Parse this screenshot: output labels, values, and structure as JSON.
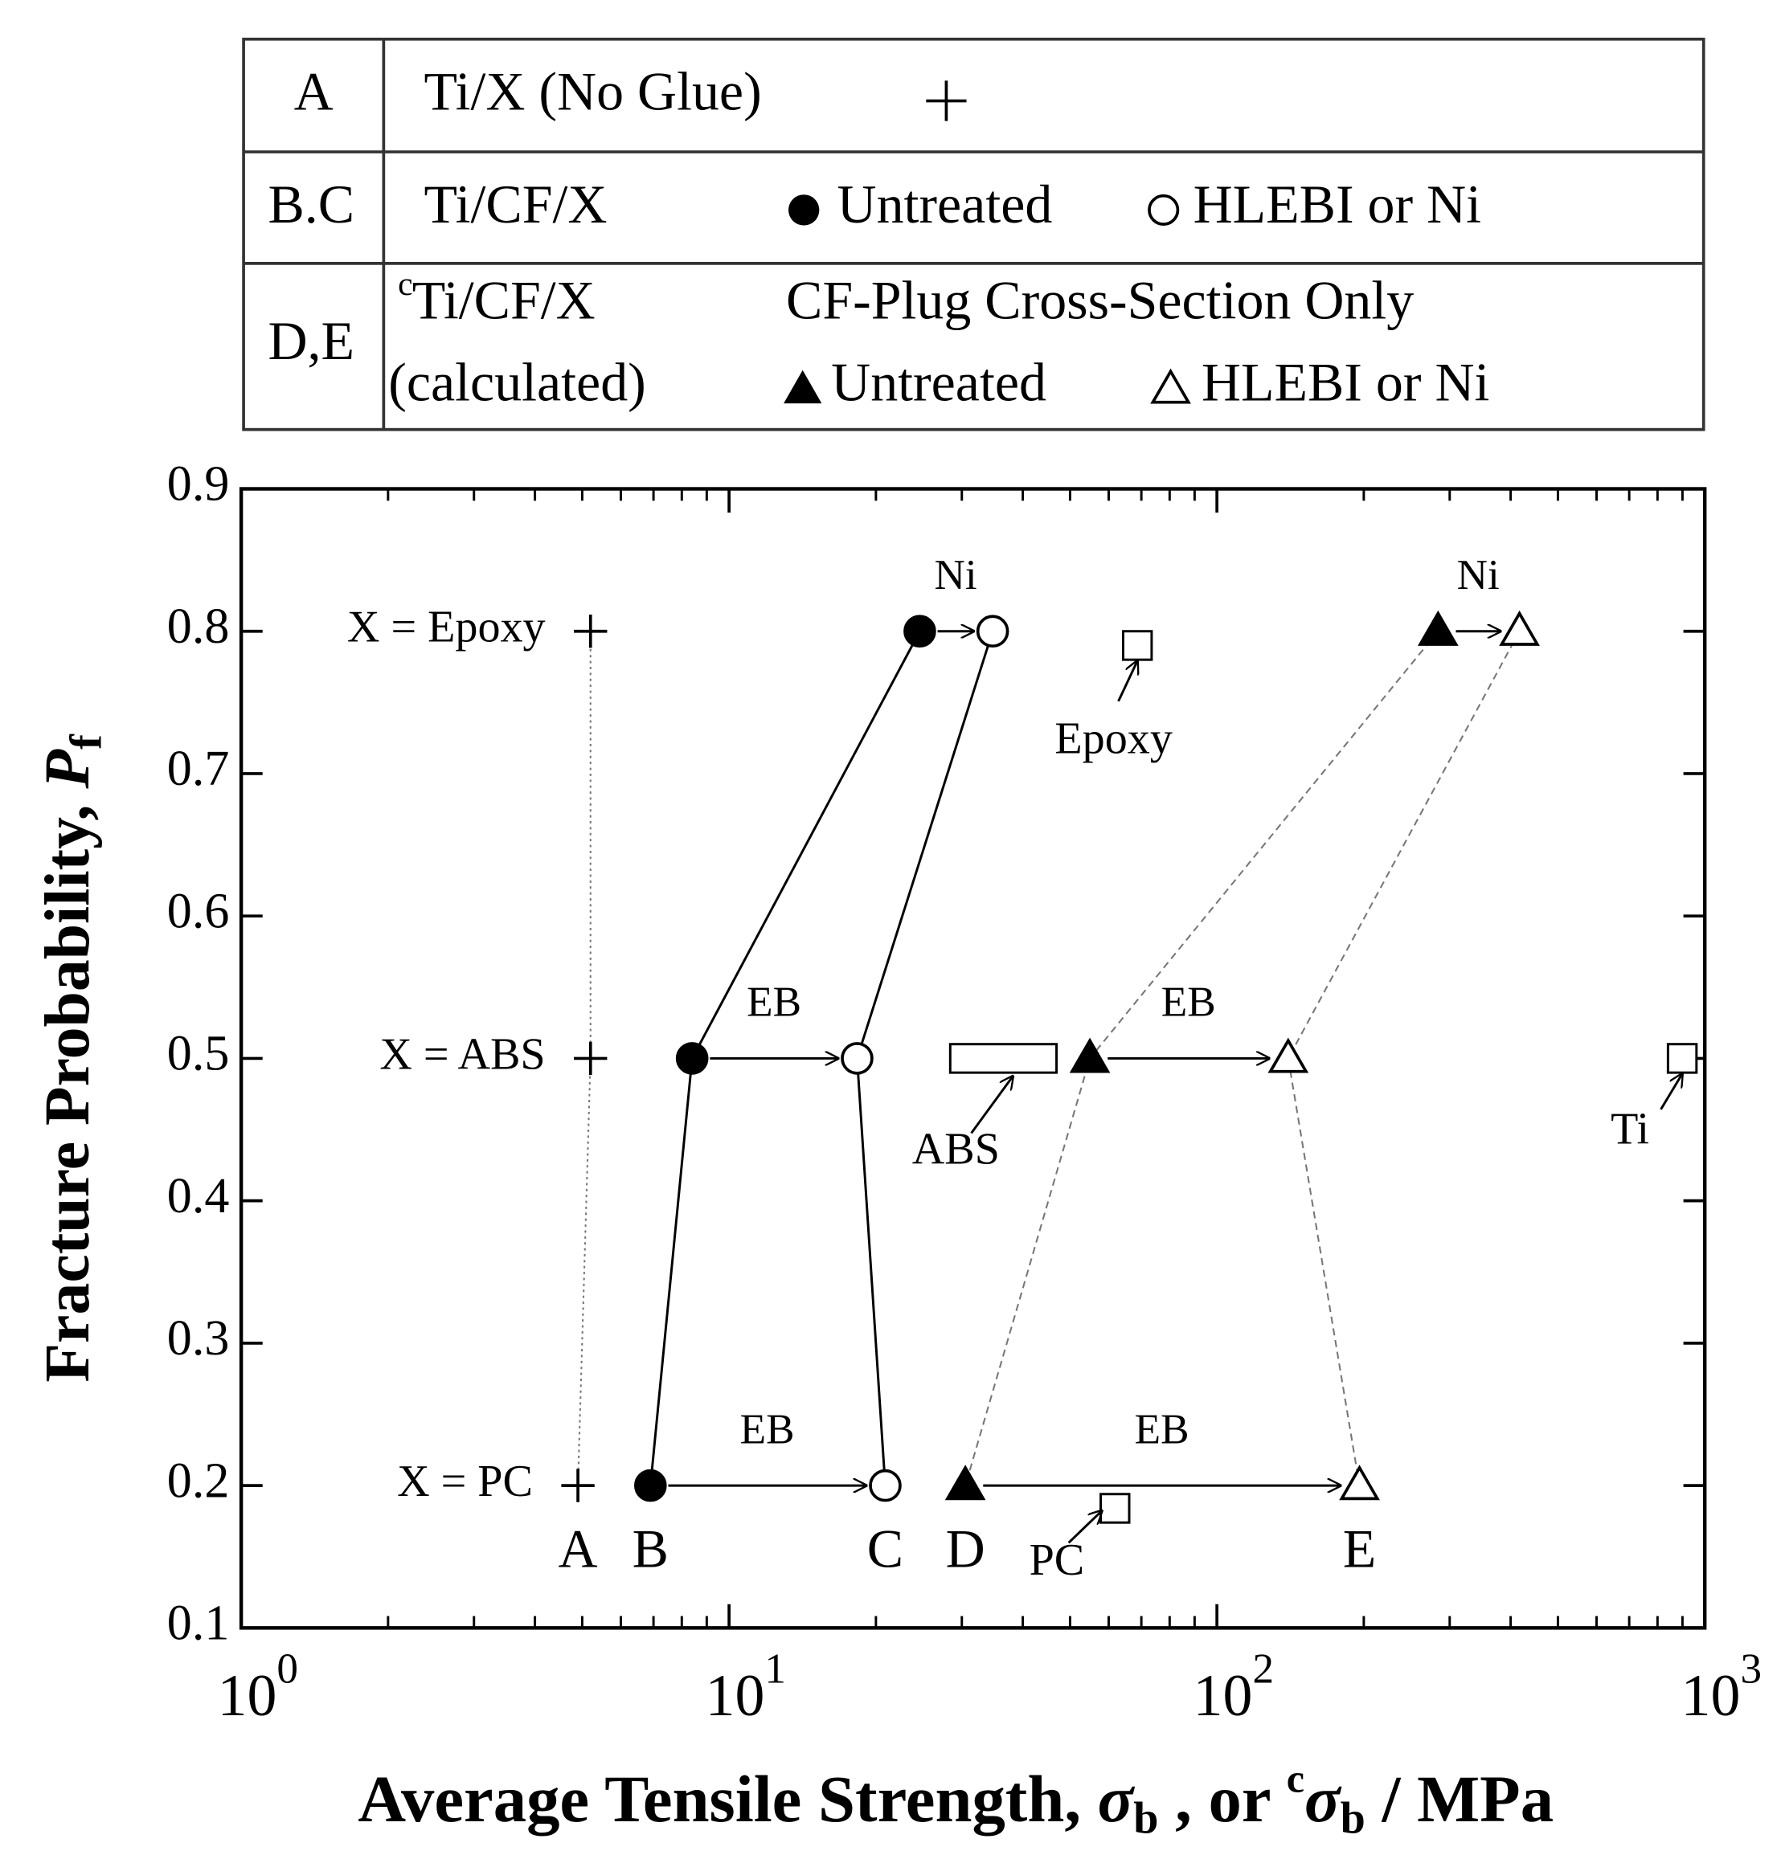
{
  "legend_table": {
    "rows": [
      {
        "key": "A",
        "label": "Ti/X (No Glue)"
      },
      {
        "key": "B.C",
        "label": "Ti/CF/X",
        "entries": [
          "Untreated",
          "HLEBI or Ni"
        ]
      },
      {
        "key": "D,E",
        "label_prefix": "c",
        "label": "Ti/CF/X",
        "note": "(calculated)",
        "heading": "CF-Plug Cross-Section Only",
        "entries": [
          "Untreated",
          "HLEBI or Ni"
        ]
      }
    ]
  },
  "chart_data": {
    "type": "scatter",
    "xlabel_parts": [
      "Average Tensile Strength, ",
      "σ",
      "b",
      " , or ",
      "c",
      "σ",
      "b",
      " / MPa"
    ],
    "ylabel_parts": [
      "Fracture Probability, ",
      "P",
      "f"
    ],
    "xscale": "log",
    "xlim": [
      1,
      1000
    ],
    "xticks": [
      {
        "value": 1,
        "label": "10",
        "exponent": "0"
      },
      {
        "value": 10,
        "label": "10",
        "exponent": "1"
      },
      {
        "value": 100,
        "label": "10",
        "exponent": "2"
      },
      {
        "value": 1000,
        "label": "10",
        "exponent": "3"
      }
    ],
    "ylim": [
      0.1,
      0.9
    ],
    "yticks": [
      0.1,
      0.2,
      0.3,
      0.4,
      0.5,
      0.6,
      0.7,
      0.8,
      0.9
    ],
    "grid": false,
    "row_labels": [
      "X = Epoxy",
      "X = ABS",
      "X = PC"
    ],
    "series": [
      {
        "name": "A",
        "marker": "plus",
        "filled": false,
        "line": "dotted",
        "color": "#000000",
        "x": [
          5.2,
          5.2,
          4.9
        ],
        "values": [
          0.8,
          0.5,
          0.2
        ]
      },
      {
        "name": "B",
        "marker": "circle",
        "filled": true,
        "line": "solid",
        "color": "#000000",
        "x": [
          24.6,
          8.4,
          6.9
        ],
        "values": [
          0.8,
          0.5,
          0.2
        ]
      },
      {
        "name": "C",
        "marker": "circle",
        "filled": false,
        "line": "solid",
        "color": "#000000",
        "x": [
          34.7,
          18.3,
          20.9
        ],
        "values": [
          0.8,
          0.5,
          0.2
        ]
      },
      {
        "name": "D",
        "marker": "triangle",
        "filled": true,
        "line": "dashed",
        "color": "#000000",
        "x": [
          284,
          54.9,
          30.5
        ],
        "values": [
          0.8,
          0.5,
          0.2
        ]
      },
      {
        "name": "E",
        "marker": "triangle",
        "filled": false,
        "line": "dashed",
        "color": "#000000",
        "x": [
          417,
          140,
          196
        ],
        "values": [
          0.8,
          0.5,
          0.2
        ]
      }
    ],
    "transitions": [
      {
        "from": "B",
        "to": "C",
        "labels": [
          "Ni",
          "EB",
          "EB"
        ]
      },
      {
        "from": "D",
        "to": "E",
        "labels": [
          "Ni",
          "EB",
          "EB"
        ]
      }
    ],
    "references": [
      {
        "label": "Epoxy",
        "x": 68.7,
        "y": 0.79
      },
      {
        "label": "ABS",
        "x_from": 28.4,
        "x_to": 46.9,
        "y": 0.5
      },
      {
        "label": "Ti",
        "x": 899,
        "y": 0.5
      },
      {
        "label": "PC",
        "x": 61.8,
        "y": 0.184
      }
    ]
  }
}
